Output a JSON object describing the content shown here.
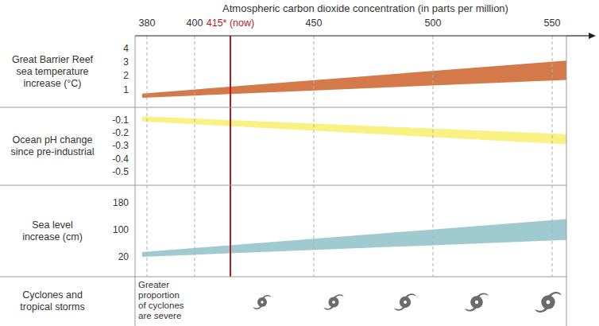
{
  "chart_data": {
    "type": "panels",
    "title": "Atmospheric carbon dioxide concentration (in parts per million)",
    "xlim": [
      375,
      556
    ],
    "xticks": [
      380,
      400,
      {
        "value": 415,
        "label": "415* (now)"
      },
      450,
      500,
      550
    ],
    "grid": true,
    "now": {
      "x": 415,
      "color": "#b5191f"
    },
    "panels": [
      {
        "type": "area",
        "y_label": [
          "Great Barrier Reef",
          "sea temperature",
          "increase (°C)"
        ],
        "x": [
          378,
          556
        ],
        "low": [
          0.4,
          1.7
        ],
        "high": [
          0.7,
          3.1
        ],
        "color": "#d4794a",
        "ylim": [
          -0.3,
          4.9
        ],
        "yticks": [
          1,
          2,
          3,
          4
        ]
      },
      {
        "type": "area",
        "y_label": [
          "Ocean pH change",
          "since pre-industrial"
        ],
        "x": [
          378,
          556
        ],
        "low": [
          -0.11,
          -0.29
        ],
        "high": [
          -0.07,
          -0.21
        ],
        "color": "#f8f184",
        "ylim": [
          -0.61,
          0
        ],
        "yticks": [
          -0.1,
          -0.2,
          -0.3,
          -0.4,
          -0.5
        ]
      },
      {
        "type": "area",
        "y_label": [
          "Sea level",
          "increase (cm)"
        ],
        "x": [
          378,
          556
        ],
        "low": [
          20,
          70
        ],
        "high": [
          34,
          132
        ],
        "color": "#9fcbd0",
        "ylim": [
          -39,
          232
        ],
        "yticks": [
          20,
          100,
          180
        ]
      },
      {
        "type": "icons",
        "y_label": [
          "Cyclones and",
          "tropical storms"
        ],
        "annotation": [
          "Greater",
          "proportion",
          "of cyclones",
          "are severe"
        ]
      }
    ]
  }
}
